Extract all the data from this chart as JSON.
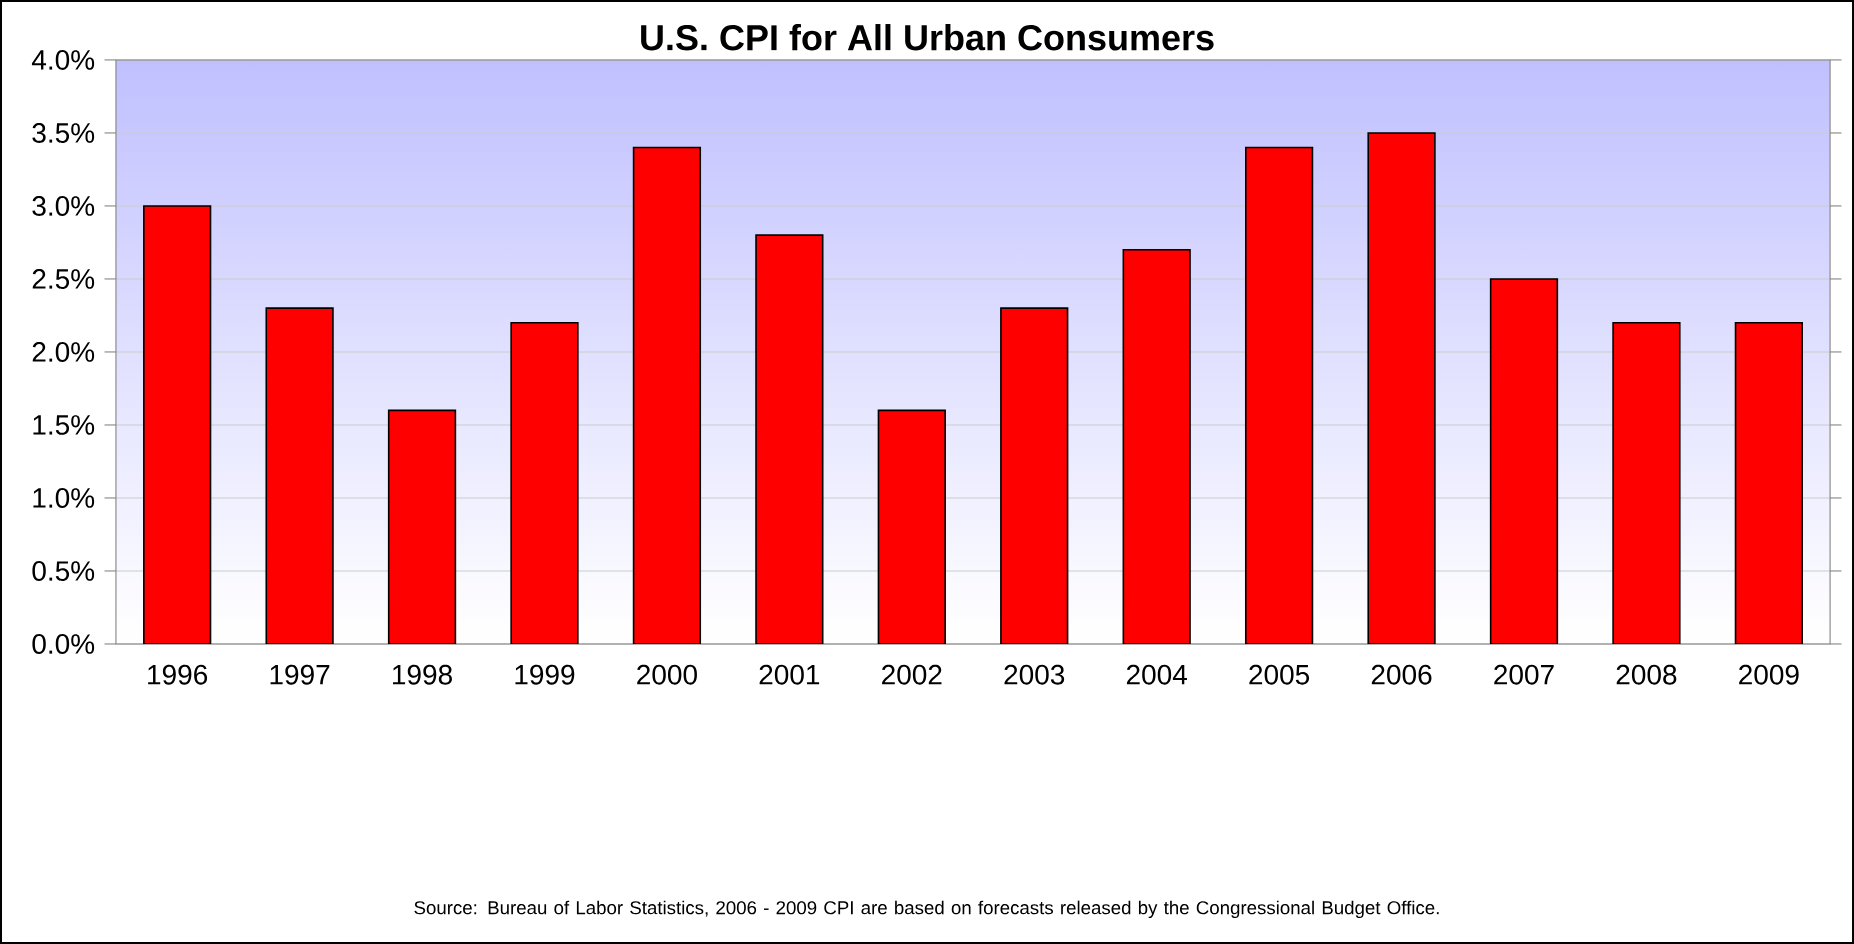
{
  "chart_data": {
    "type": "bar",
    "title": "U.S. CPI for All Urban Consumers",
    "categories": [
      "1996",
      "1997",
      "1998",
      "1999",
      "2000",
      "2001",
      "2002",
      "2003",
      "2004",
      "2005",
      "2006",
      "2007",
      "2008",
      "2009"
    ],
    "values": [
      3.0,
      2.3,
      1.6,
      2.2,
      3.4,
      2.8,
      1.6,
      2.3,
      2.7,
      3.4,
      3.5,
      2.5,
      2.2,
      2.2
    ],
    "color": "#ff0000",
    "ylim": [
      0,
      4
    ],
    "yticks": [
      {
        "value": 0,
        "label": "0.0%"
      },
      {
        "value": 0.5,
        "label": "0.5%"
      },
      {
        "value": 1,
        "label": "1.0%"
      },
      {
        "value": 1.5,
        "label": "1.5%"
      },
      {
        "value": 2,
        "label": "2.0%"
      },
      {
        "value": 2.5,
        "label": "2.5%"
      },
      {
        "value": 3,
        "label": "3.0%"
      },
      {
        "value": 3.5,
        "label": "3.5%"
      },
      {
        "value": 4,
        "label": "4.0%"
      }
    ],
    "grid": "y",
    "annotations": [
      "Source: Bureau of Labor Statistics, 2006 - 2009 CPI are based on forecasts released by the Congressional Budget Office."
    ]
  }
}
